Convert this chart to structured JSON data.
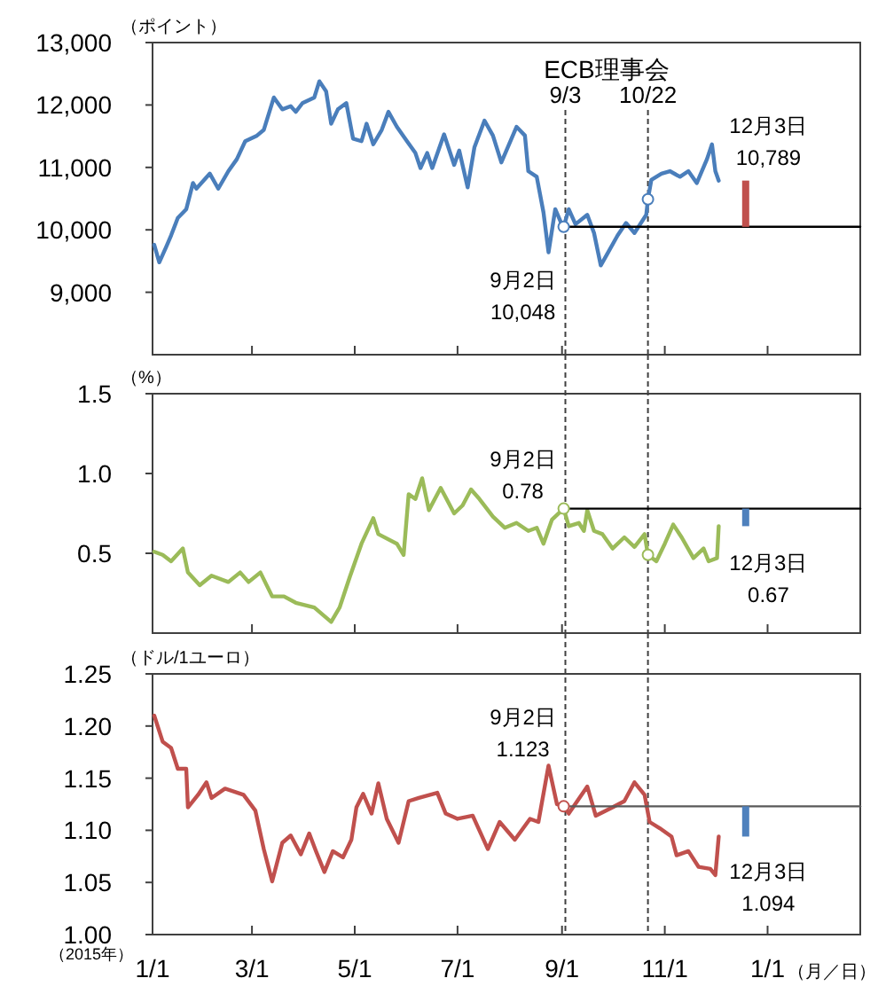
{
  "chart_data": [
    {
      "type": "line",
      "ylabel": "（ポイント）",
      "xlim": [
        "2015-01-01",
        "2016-02-25"
      ],
      "ylim": [
        8000,
        13000
      ],
      "xticks": [
        {
          "value": "2015-01-01",
          "label": null
        },
        {
          "value": "2015-03-01",
          "label": null
        },
        {
          "value": "2015-05-01",
          "label": null
        },
        {
          "value": "2015-07-01",
          "label": null
        },
        {
          "value": "2015-09-01",
          "label": null
        },
        {
          "value": "2015-11-01",
          "label": null
        },
        {
          "value": "2016-01-01",
          "label": null
        }
      ],
      "yticks": [
        {
          "value": 9000,
          "label": "9,000"
        },
        {
          "value": 10000,
          "label": "10,000"
        },
        {
          "value": 11000,
          "label": "11,000"
        },
        {
          "value": 12000,
          "label": "12,000"
        },
        {
          "value": 13000,
          "label": "13,000"
        }
      ],
      "tick_labels": "y",
      "series": [
        {
          "color": "#4a7ebb",
          "x": [
            "2015-01-02",
            "2015-01-05",
            "2015-01-09",
            "2015-01-12",
            "2015-01-16",
            "2015-01-21",
            "2015-01-25",
            "2015-01-27",
            "2015-02-04",
            "2015-02-09",
            "2015-02-15",
            "2015-02-20",
            "2015-02-25",
            "2015-03-04",
            "2015-03-08",
            "2015-03-14",
            "2015-03-19",
            "2015-03-24",
            "2015-03-27",
            "2015-03-31",
            "2015-04-07",
            "2015-04-10",
            "2015-04-14",
            "2015-04-17",
            "2015-04-21",
            "2015-04-26",
            "2015-04-30",
            "2015-05-05",
            "2015-05-08",
            "2015-05-12",
            "2015-05-17",
            "2015-05-21",
            "2015-05-26",
            "2015-06-01",
            "2015-06-06",
            "2015-06-09",
            "2015-06-13",
            "2015-06-16",
            "2015-06-23",
            "2015-06-29",
            "2015-07-02",
            "2015-07-07",
            "2015-07-11",
            "2015-07-17",
            "2015-07-22",
            "2015-07-27",
            "2015-08-05",
            "2015-08-10",
            "2015-08-12",
            "2015-08-17",
            "2015-08-21",
            "2015-08-24",
            "2015-08-28",
            "2015-09-01",
            "2015-09-02",
            "2015-09-05",
            "2015-09-09",
            "2015-09-16",
            "2015-09-20",
            "2015-09-24",
            "2015-09-28",
            "2015-10-04",
            "2015-10-09",
            "2015-10-14",
            "2015-10-21",
            "2015-10-22",
            "2015-10-24",
            "2015-10-30",
            "2015-11-04",
            "2015-11-10",
            "2015-11-15",
            "2015-11-20",
            "2015-11-26",
            "2015-11-29",
            "2015-12-01",
            "2015-12-03"
          ],
          "values": [
            9760,
            9480,
            9720,
            9910,
            10190,
            10330,
            10750,
            10660,
            10900,
            10660,
            10940,
            11130,
            11420,
            11510,
            11600,
            12120,
            11930,
            11980,
            11890,
            12030,
            12120,
            12380,
            12220,
            11700,
            11930,
            12030,
            11460,
            11420,
            11700,
            11370,
            11600,
            11890,
            11650,
            11420,
            11230,
            10990,
            11230,
            10990,
            11530,
            11040,
            11270,
            10680,
            11320,
            11750,
            11510,
            11080,
            11650,
            11510,
            10940,
            10850,
            10280,
            9640,
            10330,
            10080,
            10048,
            10330,
            10090,
            10240,
            9950,
            9430,
            9620,
            9910,
            10110,
            9950,
            10240,
            10490,
            10800,
            10900,
            10940,
            10850,
            10940,
            10750,
            11130,
            11370,
            10940,
            10789
          ]
        },
        {
          "type": "line",
          "color": "#000000",
          "x": [
            "2015-09-02",
            "2016-02-25"
          ],
          "values": [
            10048,
            10048
          ]
        },
        {
          "type": "scatter",
          "marker": "circle",
          "color": "#4a7ebb",
          "x": [
            "2015-09-02",
            "2015-10-22"
          ],
          "values": [
            10048,
            10490
          ]
        },
        {
          "type": "bar",
          "color": "#c0504d",
          "x": [
            "2015-12-19"
          ],
          "base": [
            10048
          ],
          "values": [
            741
          ]
        }
      ],
      "ref_lines": [
        {
          "axis": "x",
          "value": "2015-09-03",
          "label": "9/3",
          "line_style": "dashed",
          "color": "#404040"
        },
        {
          "axis": "x",
          "value": "2015-10-22",
          "label": "10/22",
          "line_style": "dashed",
          "color": "#404040"
        }
      ],
      "annotations": [
        "ECB理事会",
        {
          "text": "9月2日\n10,048",
          "x": "2015-09-02",
          "y": 10048
        },
        {
          "text": "12月3日\n10,789",
          "x": "2015-12-03",
          "y": 10789
        }
      ]
    },
    {
      "type": "line",
      "ylabel": "（%）",
      "xlim": [
        "2015-01-01",
        "2016-02-25"
      ],
      "ylim": [
        0,
        1.5
      ],
      "xticks": [
        {
          "value": "2015-01-01",
          "label": null
        },
        {
          "value": "2015-03-01",
          "label": null
        },
        {
          "value": "2015-05-01",
          "label": null
        },
        {
          "value": "2015-07-01",
          "label": null
        },
        {
          "value": "2015-09-01",
          "label": null
        },
        {
          "value": "2015-11-01",
          "label": null
        },
        {
          "value": "2016-01-01",
          "label": null
        }
      ],
      "yticks": [
        {
          "value": 0.5,
          "label": "0.5"
        },
        {
          "value": 1.0,
          "label": "1.0"
        },
        {
          "value": 1.5,
          "label": "1.5"
        }
      ],
      "tick_labels": "y",
      "series": [
        {
          "color": "#9bbb59",
          "x": [
            "2015-01-02",
            "2015-01-07",
            "2015-01-12",
            "2015-01-19",
            "2015-01-22",
            "2015-01-29",
            "2015-02-05",
            "2015-02-15",
            "2015-02-22",
            "2015-02-27",
            "2015-03-06",
            "2015-03-13",
            "2015-03-20",
            "2015-03-27",
            "2015-04-07",
            "2015-04-17",
            "2015-04-22",
            "2015-04-28",
            "2015-05-05",
            "2015-05-12",
            "2015-05-15",
            "2015-05-26",
            "2015-05-30",
            "2015-06-02",
            "2015-06-06",
            "2015-06-10",
            "2015-06-14",
            "2015-06-21",
            "2015-06-29",
            "2015-07-04",
            "2015-07-09",
            "2015-07-14",
            "2015-07-22",
            "2015-07-29",
            "2015-08-05",
            "2015-08-12",
            "2015-08-17",
            "2015-08-21",
            "2015-08-26",
            "2015-09-02",
            "2015-09-05",
            "2015-09-11",
            "2015-09-14",
            "2015-09-16",
            "2015-09-20",
            "2015-09-25",
            "2015-10-01",
            "2015-10-08",
            "2015-10-14",
            "2015-10-20",
            "2015-10-22",
            "2015-10-27",
            "2015-11-01",
            "2015-11-06",
            "2015-11-11",
            "2015-11-18",
            "2015-11-24",
            "2015-11-27",
            "2015-12-02",
            "2015-12-03"
          ],
          "values": [
            0.51,
            0.49,
            0.45,
            0.53,
            0.38,
            0.3,
            0.36,
            0.32,
            0.38,
            0.32,
            0.38,
            0.23,
            0.23,
            0.19,
            0.16,
            0.07,
            0.16,
            0.35,
            0.56,
            0.72,
            0.62,
            0.56,
            0.49,
            0.87,
            0.84,
            0.97,
            0.77,
            0.91,
            0.75,
            0.8,
            0.9,
            0.84,
            0.73,
            0.66,
            0.69,
            0.64,
            0.66,
            0.56,
            0.71,
            0.78,
            0.67,
            0.69,
            0.64,
            0.77,
            0.64,
            0.62,
            0.53,
            0.6,
            0.54,
            0.62,
            0.49,
            0.45,
            0.56,
            0.68,
            0.6,
            0.47,
            0.53,
            0.45,
            0.47,
            0.67
          ]
        },
        {
          "type": "line",
          "color": "#000000",
          "x": [
            "2015-09-02",
            "2016-02-25"
          ],
          "values": [
            0.78,
            0.78
          ]
        },
        {
          "type": "scatter",
          "marker": "circle",
          "color": "#9bbb59",
          "x": [
            "2015-09-02",
            "2015-10-22"
          ],
          "values": [
            0.78,
            0.49
          ]
        },
        {
          "type": "bar",
          "color": "#4f81bd",
          "x": [
            "2015-12-19"
          ],
          "base": [
            0.67
          ],
          "values": [
            0.11
          ]
        }
      ],
      "ref_lines": [
        {
          "axis": "x",
          "value": "2015-09-03",
          "label": null,
          "line_style": "dashed",
          "color": "#404040"
        },
        {
          "axis": "x",
          "value": "2015-10-22",
          "label": null,
          "line_style": "dashed",
          "color": "#404040"
        }
      ],
      "annotations": [
        {
          "text": "9月2日\n0.78",
          "x": "2015-09-02",
          "y": 0.78
        },
        {
          "text": "12月3日\n0.67",
          "x": "2015-12-03",
          "y": 0.67
        }
      ]
    },
    {
      "type": "line",
      "ylabel": "（ドル/1ユーロ）",
      "xlabel": "（月／日）",
      "xlim": [
        "2015-01-01",
        "2016-02-25"
      ],
      "ylim": [
        1.0,
        1.25
      ],
      "xticks": [
        {
          "value": "2015-01-01",
          "label": "1/1"
        },
        {
          "value": "2015-03-01",
          "label": "3/1"
        },
        {
          "value": "2015-05-01",
          "label": "5/1"
        },
        {
          "value": "2015-07-01",
          "label": "7/1"
        },
        {
          "value": "2015-09-01",
          "label": "9/1"
        },
        {
          "value": "2015-11-01",
          "label": "11/1"
        },
        {
          "value": "2016-01-01",
          "label": "1/1"
        }
      ],
      "yticks": [
        {
          "value": 1.0,
          "label": "1.00"
        },
        {
          "value": 1.05,
          "label": "1.05"
        },
        {
          "value": 1.1,
          "label": "1.10"
        },
        {
          "value": 1.15,
          "label": "1.15"
        },
        {
          "value": 1.2,
          "label": "1.20"
        },
        {
          "value": 1.25,
          "label": "1.25"
        }
      ],
      "series": [
        {
          "color": "#c0504d",
          "x": [
            "2015-01-02",
            "2015-01-07",
            "2015-01-12",
            "2015-01-16",
            "2015-01-21",
            "2015-01-22",
            "2015-01-28",
            "2015-02-02",
            "2015-02-05",
            "2015-02-13",
            "2015-02-24",
            "2015-03-03",
            "2015-03-08",
            "2015-03-13",
            "2015-03-19",
            "2015-03-24",
            "2015-03-30",
            "2015-04-04",
            "2015-04-08",
            "2015-04-13",
            "2015-04-18",
            "2015-04-24",
            "2015-04-29",
            "2015-05-02",
            "2015-05-06",
            "2015-05-11",
            "2015-05-15",
            "2015-05-20",
            "2015-05-27",
            "2015-06-02",
            "2015-06-08",
            "2015-06-19",
            "2015-06-24",
            "2015-07-01",
            "2015-07-10",
            "2015-07-19",
            "2015-07-26",
            "2015-08-04",
            "2015-08-13",
            "2015-08-18",
            "2015-08-24",
            "2015-08-29",
            "2015-09-02",
            "2015-09-05",
            "2015-09-16",
            "2015-09-21",
            "2015-10-01",
            "2015-10-08",
            "2015-10-14",
            "2015-10-20",
            "2015-10-23",
            "2015-10-29",
            "2015-11-05",
            "2015-11-08",
            "2015-11-15",
            "2015-11-21",
            "2015-11-28",
            "2015-12-01",
            "2015-12-03"
          ],
          "values": [
            1.21,
            1.185,
            1.179,
            1.159,
            1.159,
            1.122,
            1.134,
            1.146,
            1.131,
            1.14,
            1.134,
            1.119,
            1.082,
            1.051,
            1.088,
            1.095,
            1.077,
            1.097,
            1.08,
            1.06,
            1.08,
            1.074,
            1.091,
            1.122,
            1.135,
            1.116,
            1.145,
            1.111,
            1.088,
            1.128,
            1.131,
            1.136,
            1.116,
            1.111,
            1.114,
            1.082,
            1.108,
            1.091,
            1.111,
            1.108,
            1.162,
            1.125,
            1.123,
            1.116,
            1.142,
            1.114,
            1.122,
            1.128,
            1.146,
            1.134,
            1.108,
            1.102,
            1.094,
            1.076,
            1.08,
            1.065,
            1.063,
            1.057,
            1.094
          ]
        },
        {
          "type": "line",
          "color": "#595959",
          "x": [
            "2015-09-02",
            "2016-02-25"
          ],
          "values": [
            1.123,
            1.123
          ]
        },
        {
          "type": "scatter",
          "marker": "circle",
          "color": "#c0504d",
          "x": [
            "2015-09-02"
          ],
          "values": [
            1.123
          ]
        },
        {
          "type": "bar",
          "color": "#4f81bd",
          "x": [
            "2015-12-19"
          ],
          "base": [
            1.094
          ],
          "values": [
            0.029
          ]
        }
      ],
      "ref_lines": [
        {
          "axis": "x",
          "value": "2015-09-03",
          "label": null,
          "line_style": "dashed",
          "color": "#404040"
        },
        {
          "axis": "x",
          "value": "2015-10-22",
          "label": null,
          "line_style": "dashed",
          "color": "#404040"
        }
      ],
      "annotations": [
        {
          "text": "9月2日\n1.123",
          "x": "2015-09-02",
          "y": 1.123
        },
        {
          "text": "12月3日\n1.094",
          "x": "2015-12-03",
          "y": 1.094
        },
        "（2015年）"
      ]
    }
  ]
}
